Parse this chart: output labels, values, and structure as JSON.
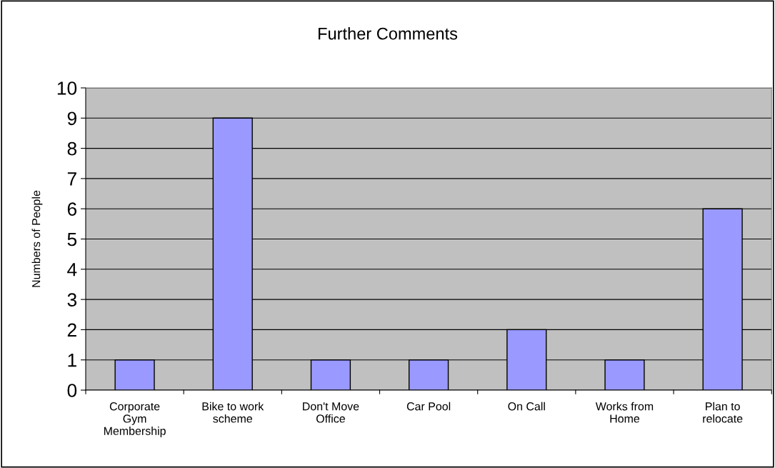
{
  "chart_data": {
    "type": "bar",
    "title": "Further Comments",
    "ylabel": "Numbers of People",
    "categories": [
      "Corporate\nGym\nMembership",
      "Bike to work\nscheme",
      "Don't Move\nOffice",
      "Car Pool",
      "On Call",
      "Works from\nHome",
      "Plan to\nrelocate"
    ],
    "values": [
      1,
      9,
      1,
      1,
      2,
      1,
      6
    ],
    "color": "#9999ff",
    "ylim": [
      0,
      10
    ],
    "yticks": [
      0,
      1,
      2,
      3,
      4,
      5,
      6,
      7,
      8,
      9,
      10
    ],
    "grid": "y",
    "legend": false
  }
}
